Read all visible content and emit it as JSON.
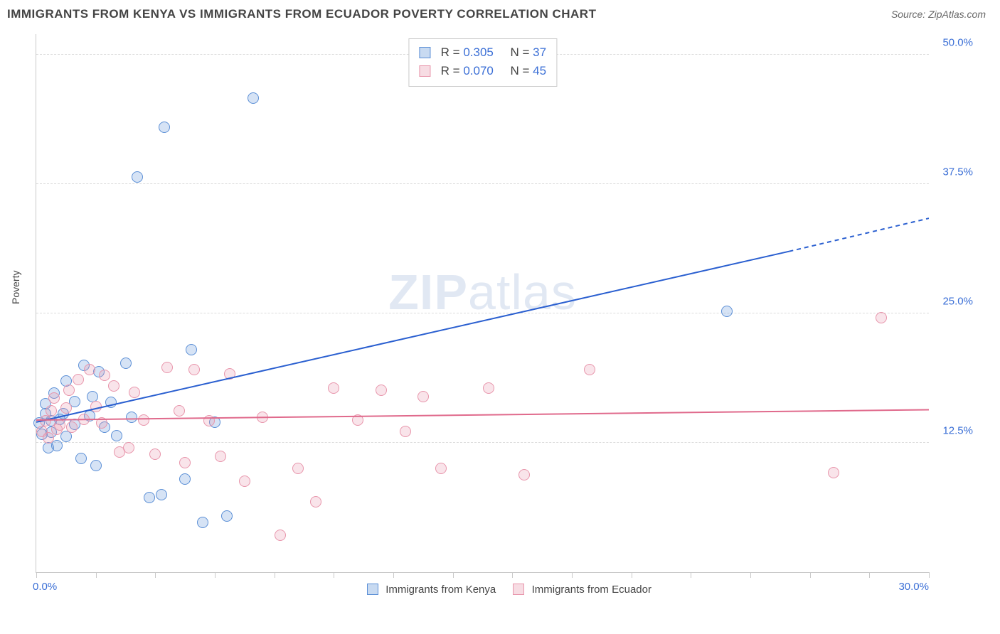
{
  "title": "IMMIGRANTS FROM KENYA VS IMMIGRANTS FROM ECUADOR POVERTY CORRELATION CHART",
  "source_prefix": "Source: ",
  "source_name": "ZipAtlas.com",
  "ylabel": "Poverty",
  "watermark_a": "ZIP",
  "watermark_b": "atlas",
  "chart": {
    "type": "scatter",
    "xlim": [
      0,
      30
    ],
    "ylim": [
      0,
      52
    ],
    "x_min_label": "0.0%",
    "x_max_label": "30.0%",
    "x_ticks": [
      0,
      2,
      4,
      6,
      8,
      10,
      12,
      14,
      16,
      18,
      20,
      22,
      24,
      26,
      28,
      30
    ],
    "y_gridlines": [
      12.5,
      25.0,
      37.5,
      50.0
    ],
    "y_labels": [
      "12.5%",
      "25.0%",
      "37.5%",
      "50.0%"
    ],
    "background_color": "#ffffff",
    "grid_color": "#dcdcdc",
    "marker_radius": 8,
    "marker_border_alpha": 0.9,
    "marker_fill_alpha": 0.35,
    "series": [
      {
        "name": "Immigrants from Kenya",
        "color": "#5b8fd6",
        "line_color": "#2a5fd0",
        "R": "0.305",
        "N": "37",
        "trend": {
          "x1": 0,
          "y1": 14.5,
          "x2": 25.3,
          "y2": 31.0,
          "x2_ext": 30,
          "y2_ext": 34.2
        },
        "points": [
          [
            0.1,
            14.4
          ],
          [
            0.2,
            13.3
          ],
          [
            0.3,
            15.3
          ],
          [
            0.3,
            16.3
          ],
          [
            0.4,
            12.0
          ],
          [
            0.5,
            13.5
          ],
          [
            0.5,
            14.6
          ],
          [
            0.6,
            17.3
          ],
          [
            0.7,
            12.2
          ],
          [
            0.8,
            14.8
          ],
          [
            0.9,
            15.3
          ],
          [
            1.0,
            13.1
          ],
          [
            1.0,
            18.5
          ],
          [
            1.3,
            14.3
          ],
          [
            1.3,
            16.5
          ],
          [
            1.5,
            11.0
          ],
          [
            1.6,
            20.0
          ],
          [
            1.8,
            15.1
          ],
          [
            1.9,
            17.0
          ],
          [
            2.0,
            10.3
          ],
          [
            2.1,
            19.4
          ],
          [
            2.3,
            14.0
          ],
          [
            2.5,
            16.4
          ],
          [
            2.7,
            13.2
          ],
          [
            3.0,
            20.2
          ],
          [
            3.2,
            15.0
          ],
          [
            3.4,
            38.2
          ],
          [
            3.8,
            7.2
          ],
          [
            4.2,
            7.5
          ],
          [
            4.3,
            43.0
          ],
          [
            5.0,
            9.0
          ],
          [
            5.2,
            21.5
          ],
          [
            5.6,
            4.8
          ],
          [
            6.0,
            14.5
          ],
          [
            6.4,
            5.4
          ],
          [
            7.3,
            45.8
          ],
          [
            23.2,
            25.2
          ]
        ]
      },
      {
        "name": "Immigrants from Ecuador",
        "color": "#e895ab",
        "line_color": "#e06a8c",
        "R": "0.070",
        "N": "45",
        "trend": {
          "x1": 0,
          "y1": 14.7,
          "x2": 30,
          "y2": 15.7,
          "x2_ext": 30,
          "y2_ext": 15.7
        },
        "points": [
          [
            0.2,
            13.6
          ],
          [
            0.3,
            14.6
          ],
          [
            0.4,
            13.0
          ],
          [
            0.5,
            15.6
          ],
          [
            0.6,
            16.8
          ],
          [
            0.7,
            13.8
          ],
          [
            0.8,
            14.2
          ],
          [
            1.0,
            15.9
          ],
          [
            1.1,
            17.6
          ],
          [
            1.2,
            14.0
          ],
          [
            1.4,
            18.6
          ],
          [
            1.6,
            14.8
          ],
          [
            1.8,
            19.6
          ],
          [
            2.0,
            16.0
          ],
          [
            2.2,
            14.4
          ],
          [
            2.3,
            19.0
          ],
          [
            2.6,
            18.0
          ],
          [
            2.8,
            11.6
          ],
          [
            3.1,
            12.0
          ],
          [
            3.3,
            17.4
          ],
          [
            3.6,
            14.7
          ],
          [
            4.0,
            11.4
          ],
          [
            4.4,
            19.8
          ],
          [
            4.8,
            15.6
          ],
          [
            5.0,
            10.6
          ],
          [
            5.3,
            19.6
          ],
          [
            5.8,
            14.6
          ],
          [
            6.2,
            11.2
          ],
          [
            6.5,
            19.2
          ],
          [
            7.0,
            8.8
          ],
          [
            7.6,
            15.0
          ],
          [
            8.2,
            3.6
          ],
          [
            8.8,
            10.0
          ],
          [
            9.4,
            6.8
          ],
          [
            10.0,
            17.8
          ],
          [
            10.8,
            14.7
          ],
          [
            11.6,
            17.6
          ],
          [
            12.4,
            13.6
          ],
          [
            13.6,
            10.0
          ],
          [
            15.2,
            17.8
          ],
          [
            16.4,
            9.4
          ],
          [
            18.6,
            19.6
          ],
          [
            26.8,
            9.6
          ],
          [
            28.4,
            24.6
          ],
          [
            13.0,
            17.0
          ]
        ]
      }
    ],
    "legend_labels": {
      "R_prefix": "R = ",
      "N_prefix": "N = "
    }
  }
}
